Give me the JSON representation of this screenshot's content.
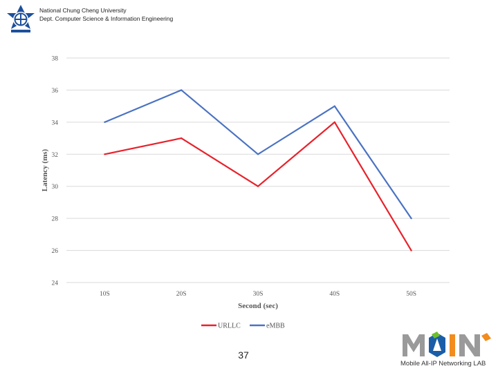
{
  "header": {
    "university": "National Chung Cheng University",
    "department": "Dept. Computer Science & Information Engineering"
  },
  "page_number": "37",
  "lab": {
    "logo_text": "MAIN",
    "caption": "Mobile All-IP Networking LAB"
  },
  "colors": {
    "urllc": "#e8212b",
    "embb": "#4a72c2",
    "grid": "#d9d9d9",
    "logo_blue": "#1b5ea8",
    "logo_green": "#6fbf2a",
    "logo_orange": "#f28c1c",
    "logo_gray": "#9a9a9a"
  },
  "chart_data": {
    "type": "line",
    "title": "",
    "xlabel": "Second (sec)",
    "ylabel": "Latency (ms)",
    "categories": [
      "10S",
      "20S",
      "30S",
      "40S",
      "50S"
    ],
    "ylim": [
      24,
      38
    ],
    "yticks": [
      24,
      26,
      28,
      30,
      32,
      34,
      36,
      38
    ],
    "grid": true,
    "legend_position": "bottom",
    "series": [
      {
        "name": "URLLC",
        "values": [
          32,
          33,
          30,
          34,
          26
        ],
        "color": "#e8212b"
      },
      {
        "name": "eMBB",
        "values": [
          34,
          36,
          32,
          35,
          28
        ],
        "color": "#4a72c2"
      }
    ]
  }
}
